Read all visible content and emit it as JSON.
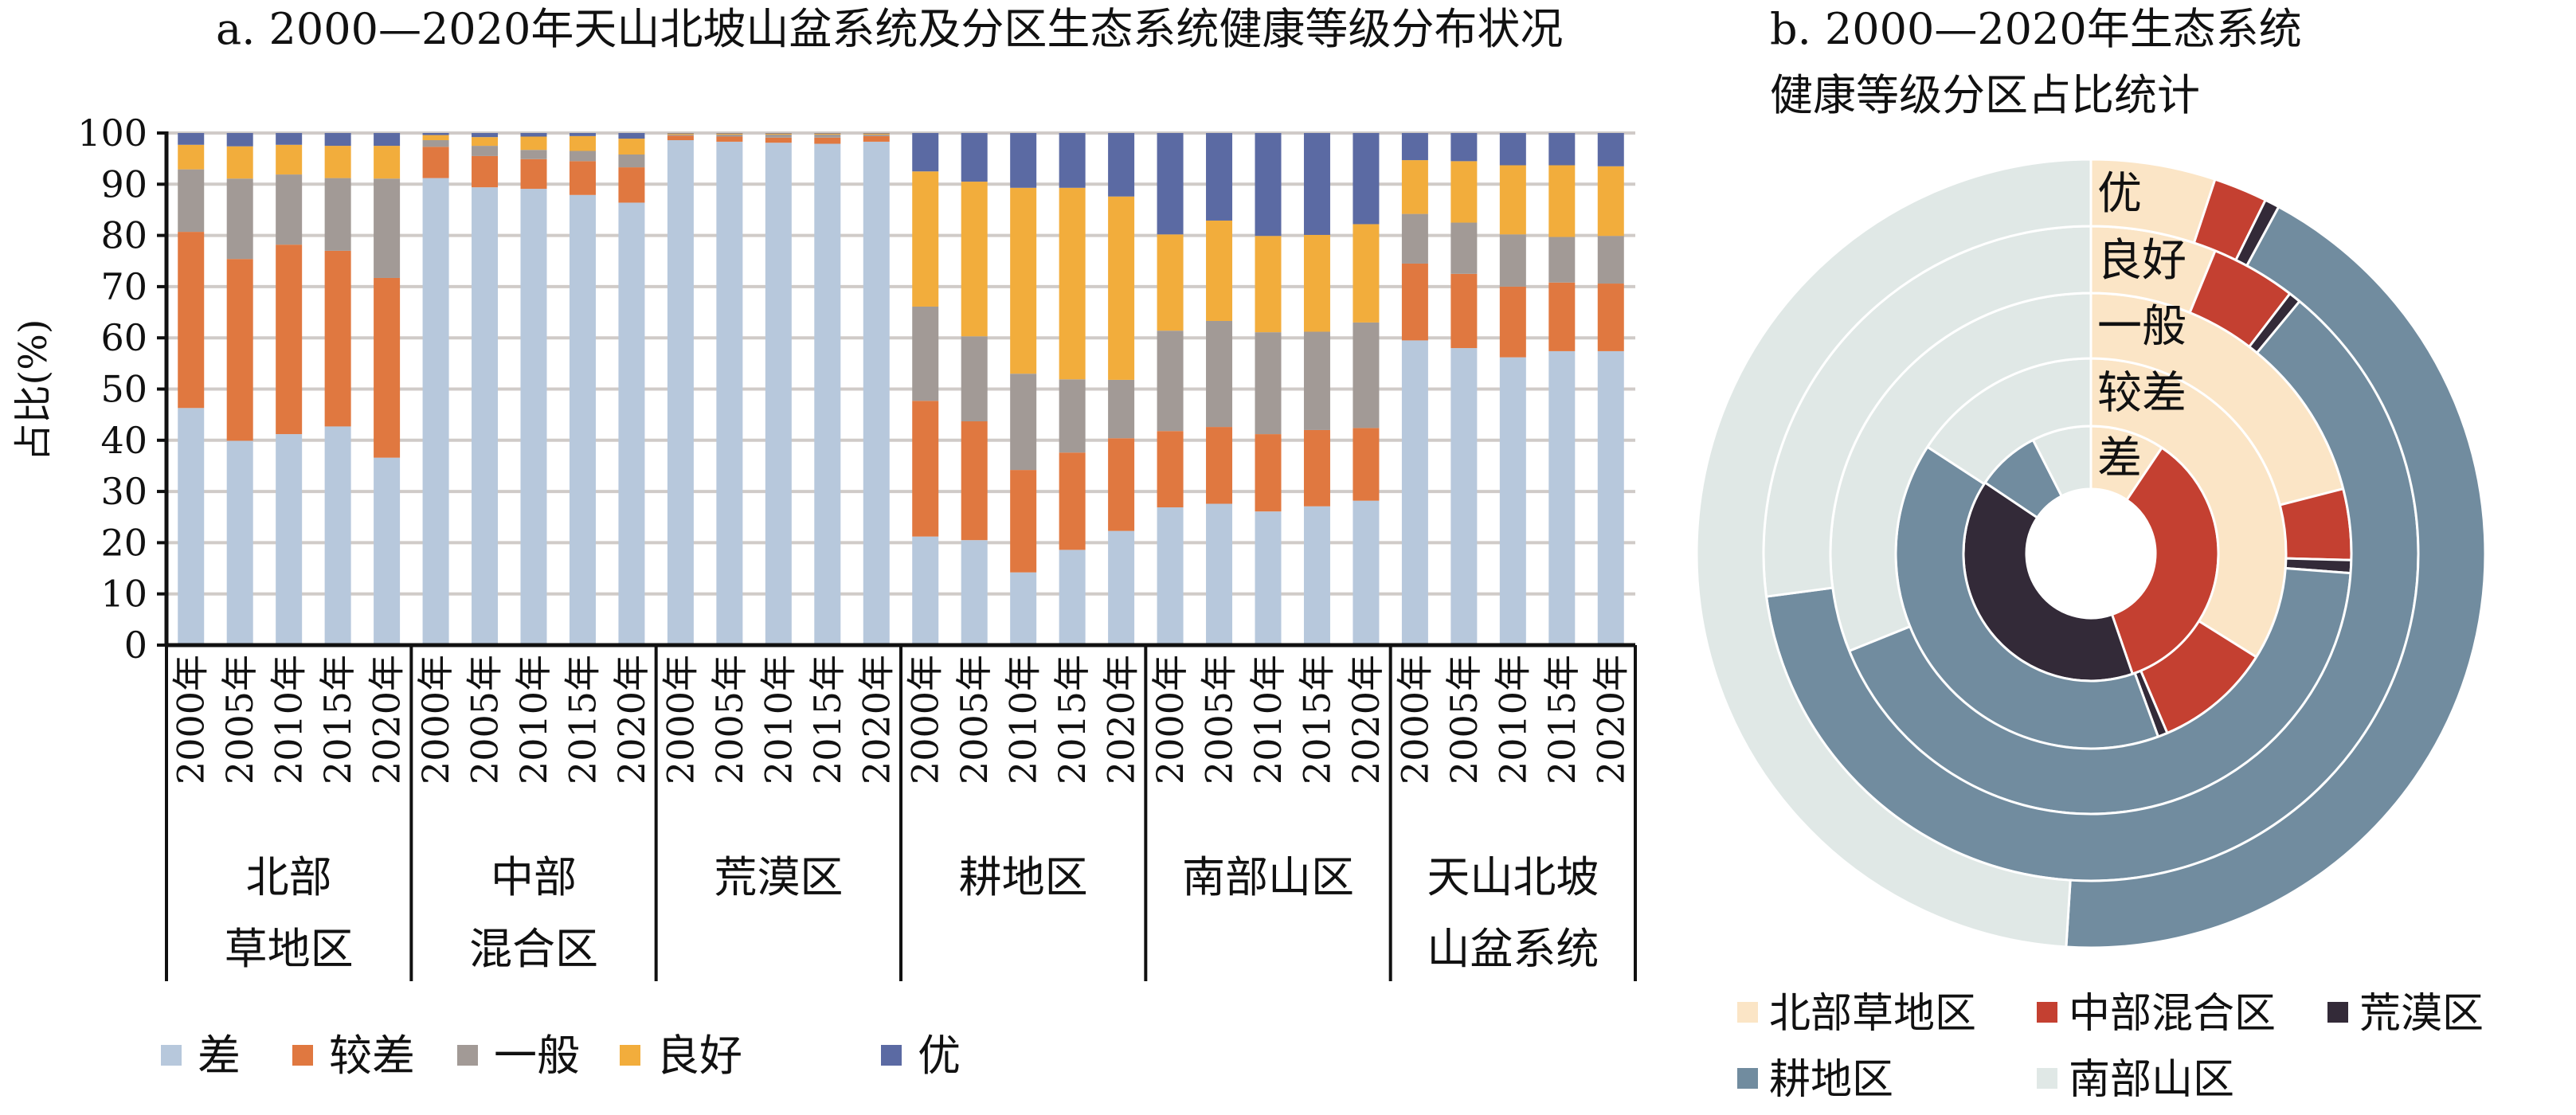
{
  "chart_data": [
    {
      "type": "bar",
      "stacked": true,
      "title": "a. 2000—2020年天山北坡山盆系统及分区生态系统健康等级分布状况",
      "xlabel": "",
      "ylabel": "占比(%)",
      "ylim": [
        0,
        100
      ],
      "yticks": [
        "0",
        "10",
        "20",
        "30",
        "40",
        "50",
        "60",
        "70",
        "80",
        "90",
        "100"
      ],
      "grid": true,
      "legend_position": "bottom",
      "years": [
        "2000年",
        "2005年",
        "2010年",
        "2015年",
        "2020年"
      ],
      "groups": [
        {
          "name_lines": [
            "北部",
            "草地区"
          ]
        },
        {
          "name_lines": [
            "中部",
            "混合区"
          ]
        },
        {
          "name_lines": [
            "荒漠区"
          ]
        },
        {
          "name_lines": [
            "耕地区"
          ]
        },
        {
          "name_lines": [
            "南部山区"
          ]
        },
        {
          "name_lines": [
            "天山北坡",
            "山盆系统"
          ]
        }
      ],
      "series": [
        {
          "name": "差",
          "color": "#b7c8dc",
          "values": [
            46.3,
            39.9,
            41.2,
            42.7,
            36.6,
            91.2,
            89.4,
            89.1,
            87.9,
            86.4,
            98.6,
            98.3,
            98.1,
            97.9,
            98.3,
            21.2,
            20.5,
            14.2,
            18.6,
            22.3,
            26.9,
            27.6,
            26.1,
            27.1,
            28.2,
            59.5,
            58.0,
            56.2,
            57.4,
            57.4
          ]
        },
        {
          "name": "较差",
          "color": "#e07840",
          "values": [
            34.4,
            35.5,
            37.0,
            34.3,
            35.1,
            6.1,
            6.1,
            5.8,
            6.6,
            6.9,
            0.9,
            1.0,
            1.0,
            1.2,
            1.1,
            26.5,
            23.2,
            20.0,
            19.0,
            18.1,
            14.9,
            15.0,
            15.1,
            14.9,
            14.2,
            15.0,
            14.5,
            13.8,
            13.4,
            13.2
          ]
        },
        {
          "name": "一般",
          "color": "#a29a96",
          "values": [
            12.2,
            15.7,
            13.7,
            14.2,
            19.4,
            1.3,
            2.0,
            1.8,
            2.0,
            2.5,
            0.2,
            0.4,
            0.6,
            0.6,
            0.3,
            18.4,
            16.6,
            18.8,
            14.3,
            11.4,
            19.6,
            20.7,
            19.9,
            19.2,
            20.6,
            9.7,
            10.0,
            10.2,
            8.9,
            9.3
          ]
        },
        {
          "name": "良好",
          "color": "#f2ad3c",
          "values": [
            4.8,
            6.3,
            5.8,
            6.3,
            6.4,
            1.0,
            1.7,
            2.6,
            2.9,
            3.1,
            0.2,
            0.2,
            0.2,
            0.2,
            0.2,
            26.4,
            30.2,
            36.3,
            37.4,
            35.8,
            18.8,
            19.6,
            18.8,
            18.9,
            19.2,
            10.5,
            12.0,
            13.5,
            14.0,
            13.6
          ]
        },
        {
          "name": "优",
          "color": "#5b6aa3",
          "values": [
            2.3,
            2.6,
            2.3,
            2.5,
            2.5,
            0.4,
            0.8,
            0.7,
            0.6,
            1.1,
            0.1,
            0.1,
            0.1,
            0.1,
            0.1,
            7.5,
            9.5,
            10.7,
            10.7,
            12.4,
            19.8,
            17.1,
            20.1,
            19.9,
            17.8,
            5.3,
            5.5,
            6.3,
            6.3,
            6.5
          ]
        }
      ]
    },
    {
      "type": "pie",
      "variant": "multi-ring donut",
      "title_lines": [
        "b. 2000—2020年生态系统",
        "健康等级分区占比统计"
      ],
      "rings": [
        {
          "name": "差",
          "values": [
            9.4,
            35.3,
            39.7,
            8.1,
            7.5
          ]
        },
        {
          "name": "较差",
          "values": [
            33.9,
            9.7,
            0.8,
            39.8,
            15.8
          ]
        },
        {
          "name": "一般",
          "values": [
            21.0,
            4.4,
            0.8,
            42.7,
            31.1
          ]
        },
        {
          "name": "良好",
          "values": [
            6.2,
            4.2,
            0.6,
            61.9,
            27.1
          ]
        },
        {
          "name": "优",
          "values": [
            5.1,
            2.2,
            0.6,
            43.1,
            49.0
          ]
        }
      ],
      "categories": [
        "北部草地区",
        "中部混合区",
        "荒漠区",
        "耕地区",
        "南部山区"
      ],
      "colors": [
        "#fbe5c6",
        "#c44031",
        "#332a38",
        "#718c9f",
        "#e0e8e6"
      ],
      "legend_position": "bottom"
    }
  ]
}
